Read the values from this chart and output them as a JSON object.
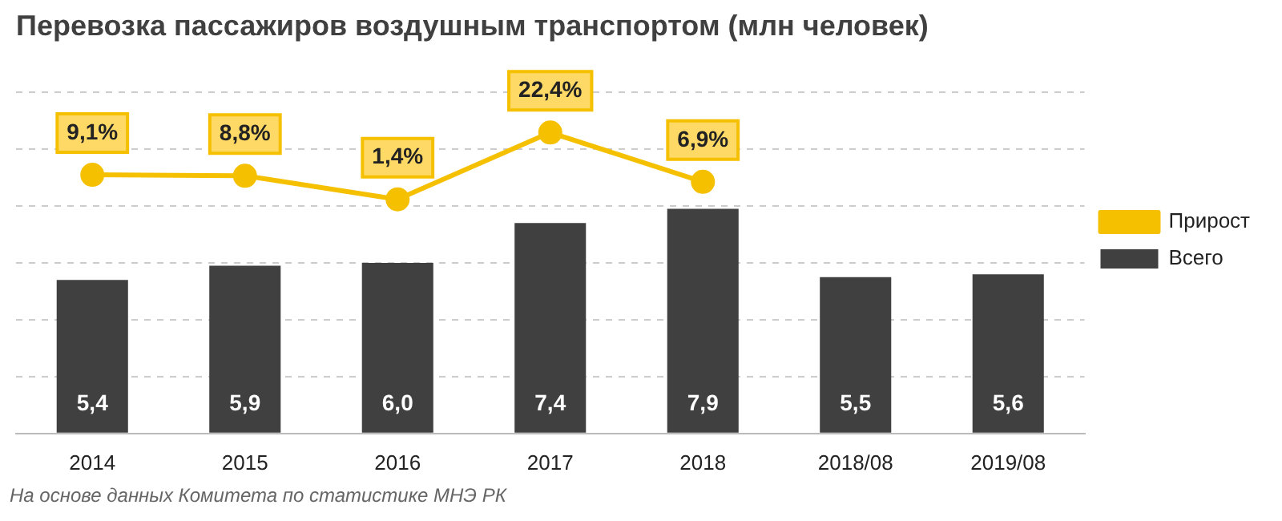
{
  "chart_data": {
    "type": "bar",
    "title": "Перевозка пассажиров воздушным транспортом (млн человек)",
    "categories": [
      "2014",
      "2015",
      "2016",
      "2017",
      "2018",
      "2018/08",
      "2019/08"
    ],
    "series": [
      {
        "name": "Всего",
        "color": "#404040",
        "values": [
          5.4,
          5.9,
          6.0,
          7.4,
          7.9,
          5.5,
          5.6
        ],
        "value_labels": [
          "5,4",
          "5,9",
          "6,0",
          "7,4",
          "7,9",
          "5,5",
          "5,6"
        ]
      },
      {
        "name": "Прирост",
        "type": "line",
        "axis": "y2",
        "color": "#f5c000",
        "values": [
          9.1,
          8.8,
          1.4,
          22.4,
          6.9,
          null,
          null
        ],
        "value_labels": [
          "9,1%",
          "8,8%",
          "1,4%",
          "22,4%",
          "6,9%",
          null,
          null
        ]
      }
    ],
    "ylim": [
      0,
      12
    ],
    "yticks": [
      {
        "value": 0,
        "label": null
      },
      {
        "value": 2,
        "label": null
      },
      {
        "value": 4,
        "label": null
      },
      {
        "value": 6,
        "label": null
      },
      {
        "value": 8,
        "label": null
      },
      {
        "value": 10,
        "label": null
      },
      {
        "value": 12,
        "label": null
      }
    ],
    "tick_labels": "x",
    "grid": "y",
    "legend": "right",
    "marker": "circle",
    "annotations": [
      "На основе данных Комитета по статистике МНЭ РК"
    ]
  }
}
